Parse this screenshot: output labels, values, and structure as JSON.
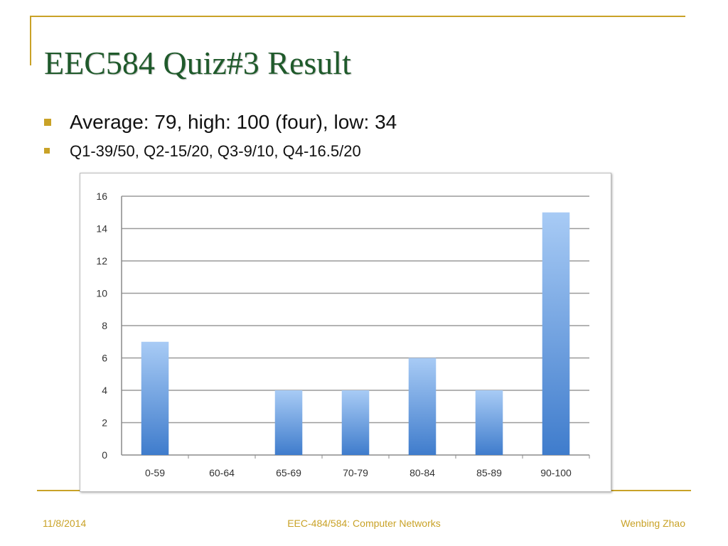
{
  "slide": {
    "title": "EEC584 Quiz#3 Result",
    "bullets": [
      "Average: 79, high: 100 (four), low: 34",
      "Q1-39/50, Q2-15/20, Q3-9/10, Q4-16.5/20"
    ],
    "footer": {
      "date": "11/8/2014",
      "course": "EEC-484/584: Computer Networks",
      "author": "Wenbing Zhao"
    },
    "colors": {
      "title": "#1f5a2b",
      "accent": "#c9a227",
      "bar_top": "#a8cbf5",
      "bar_bottom": "#3f7ccc"
    }
  },
  "chart_data": {
    "type": "bar",
    "categories": [
      "0-59",
      "60-64",
      "65-69",
      "70-79",
      "80-84",
      "85-89",
      "90-100"
    ],
    "values": [
      7,
      0,
      4,
      4,
      6,
      4,
      15
    ],
    "yticks": [
      0,
      2,
      4,
      6,
      8,
      10,
      12,
      14,
      16
    ],
    "ylim": [
      0,
      16
    ],
    "title": "",
    "xlabel": "",
    "ylabel": "",
    "grid": true,
    "legend": "none"
  }
}
